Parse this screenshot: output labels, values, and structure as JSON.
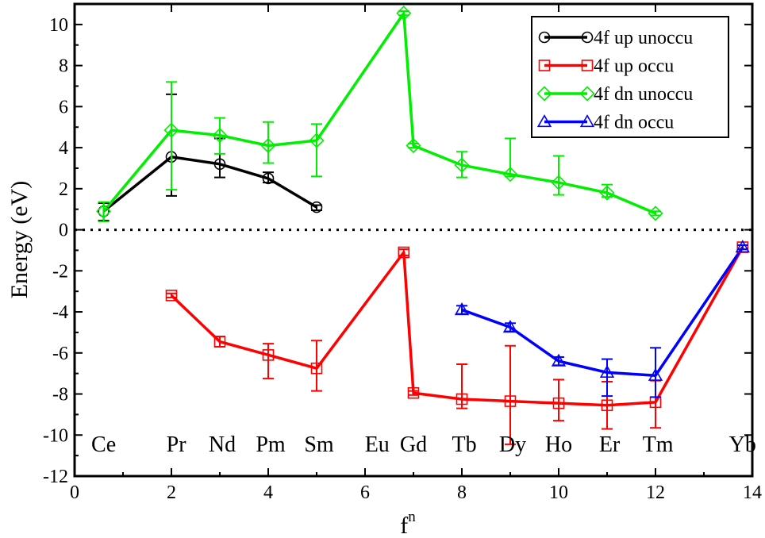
{
  "chart_data": {
    "type": "line",
    "xlabel": "f",
    "xlabel_superscript": "n",
    "ylabel": "Energy (eV)",
    "xlim": [
      0,
      14
    ],
    "ylim": [
      -12,
      11
    ],
    "xticks": [
      0,
      2,
      4,
      6,
      8,
      10,
      12,
      14
    ],
    "yticks": [
      -12,
      -10,
      -8,
      -6,
      -4,
      -2,
      0,
      2,
      4,
      6,
      8,
      10
    ],
    "zero_line": true,
    "legend_position": "top-right",
    "element_labels": [
      {
        "text": "Ce",
        "x": 0.6
      },
      {
        "text": "Pr",
        "x": 2.1
      },
      {
        "text": "Nd",
        "x": 3.05
      },
      {
        "text": "Pm",
        "x": 4.05
      },
      {
        "text": "Sm",
        "x": 5.05
      },
      {
        "text": "Eu",
        "x": 6.25
      },
      {
        "text": "Gd",
        "x": 7.0
      },
      {
        "text": "Tb",
        "x": 8.05
      },
      {
        "text": "Dy",
        "x": 9.05
      },
      {
        "text": "Ho",
        "x": 10.0
      },
      {
        "text": "Er",
        "x": 11.05
      },
      {
        "text": "Tm",
        "x": 12.05
      },
      {
        "text": "Yb",
        "x": 13.8
      }
    ],
    "series": [
      {
        "name": "4f up unoccu",
        "color": "#000000",
        "marker": "circle",
        "points": [
          {
            "x": 0.6,
            "y": 0.9,
            "err_low": 0.45,
            "err_high": 0.4
          },
          {
            "x": 2.0,
            "y": 3.55,
            "err_low": 1.9,
            "err_high": 3.05
          },
          {
            "x": 3.0,
            "y": 3.2,
            "err_low": 0.65,
            "err_high": 1.25
          },
          {
            "x": 4.0,
            "y": 2.5,
            "err_low": 0.2,
            "err_high": 0.3
          },
          {
            "x": 5.0,
            "y": 1.1,
            "err_low": 0.15,
            "err_high": 0.1
          }
        ]
      },
      {
        "name": "4f up occu",
        "color": "#ff0000",
        "marker": "square",
        "points": [
          {
            "x": 2.0,
            "y": -3.2,
            "err_low": 0.1,
            "err_high": 0.1
          },
          {
            "x": 3.0,
            "y": -5.45,
            "err_low": 0.25,
            "err_high": 0.25
          },
          {
            "x": 4.0,
            "y": -6.1,
            "err_low": 1.15,
            "err_high": 0.55
          },
          {
            "x": 5.0,
            "y": -6.75,
            "err_low": 1.1,
            "err_high": 1.35
          },
          {
            "x": 6.8,
            "y": -1.1,
            "err_low": 0.15,
            "err_high": 0.15
          },
          {
            "x": 7.0,
            "y": -7.95,
            "err_low": 0.1,
            "err_high": 0.1
          },
          {
            "x": 8.0,
            "y": -8.25,
            "err_low": 0.45,
            "err_high": 1.7
          },
          {
            "x": 9.0,
            "y": -8.35,
            "err_low": 2.1,
            "err_high": 2.7
          },
          {
            "x": 10.0,
            "y": -8.45,
            "err_low": 0.85,
            "err_high": 1.15
          },
          {
            "x": 11.0,
            "y": -8.55,
            "err_low": 1.15,
            "err_high": 1.15
          },
          {
            "x": 12.0,
            "y": -8.4,
            "err_low": 1.25,
            "err_high": 1.05
          },
          {
            "x": 13.8,
            "y": -0.85,
            "err_low": 0.1,
            "err_high": 0.1
          }
        ]
      },
      {
        "name": "4f dn unoccu",
        "color": "#00ee00",
        "marker": "diamond",
        "points": [
          {
            "x": 0.6,
            "y": 0.9,
            "err_low": 0.5,
            "err_high": 0.45
          },
          {
            "x": 2.0,
            "y": 4.85,
            "err_low": 2.9,
            "err_high": 2.35
          },
          {
            "x": 3.0,
            "y": 4.6,
            "err_low": 0.9,
            "err_high": 0.85
          },
          {
            "x": 4.0,
            "y": 4.1,
            "err_low": 0.85,
            "err_high": 1.15
          },
          {
            "x": 5.0,
            "y": 4.35,
            "err_low": 1.75,
            "err_high": 0.8
          },
          {
            "x": 6.8,
            "y": 10.55,
            "err_low": 0.1,
            "err_high": 0.1
          },
          {
            "x": 7.0,
            "y": 4.1,
            "err_low": 0.1,
            "err_high": 0.1
          },
          {
            "x": 8.0,
            "y": 3.15,
            "err_low": 0.6,
            "err_high": 0.65
          },
          {
            "x": 9.0,
            "y": 2.7,
            "err_low": 0.1,
            "err_high": 1.75
          },
          {
            "x": 10.0,
            "y": 2.3,
            "err_low": 0.6,
            "err_high": 1.3
          },
          {
            "x": 11.0,
            "y": 1.8,
            "err_low": 0.2,
            "err_high": 0.4
          },
          {
            "x": 12.0,
            "y": 0.8,
            "err_low": 0.1,
            "err_high": 0.1
          }
        ]
      },
      {
        "name": "4f dn occu",
        "color": "#0000ff",
        "marker": "triangle",
        "points": [
          {
            "x": 8.0,
            "y": -3.9,
            "err_low": 0.2,
            "err_high": 0.2
          },
          {
            "x": 9.0,
            "y": -4.75,
            "err_low": 0.2,
            "err_high": 0.2
          },
          {
            "x": 10.0,
            "y": -6.4,
            "err_low": 0.2,
            "err_high": 0.2
          },
          {
            "x": 11.0,
            "y": -6.95,
            "err_low": 1.15,
            "err_high": 0.65
          },
          {
            "x": 12.0,
            "y": -7.1,
            "err_low": 1.05,
            "err_high": 1.35
          },
          {
            "x": 13.8,
            "y": -0.85,
            "err_low": 0.1,
            "err_high": 0.1
          }
        ]
      }
    ]
  }
}
